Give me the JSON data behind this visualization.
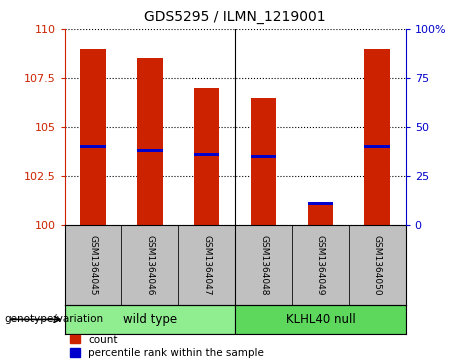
{
  "title": "GDS5295 / ILMN_1219001",
  "samples": [
    "GSM1364045",
    "GSM1364046",
    "GSM1364047",
    "GSM1364048",
    "GSM1364049",
    "GSM1364050"
  ],
  "group_labels": [
    "wild type",
    "KLHL40 null"
  ],
  "group_colors": [
    "#90EE90",
    "#5DD85D"
  ],
  "count_values": [
    109.0,
    108.5,
    107.0,
    106.5,
    101.2,
    109.0
  ],
  "percentile_values": [
    104.0,
    103.8,
    103.6,
    103.5,
    101.1,
    104.0
  ],
  "bar_bottom": 100,
  "bar_color": "#CC2200",
  "percentile_color": "#0000CC",
  "ylim": [
    100,
    110
  ],
  "yticks_left": [
    100,
    102.5,
    105,
    107.5,
    110
  ],
  "yticks_right": [
    0,
    25,
    50,
    75,
    100
  ],
  "bar_width": 0.45,
  "bg_color_sample": "#C0C0C0",
  "legend_count_label": "count",
  "legend_percentile_label": "percentile rank within the sample",
  "title_fontsize": 10,
  "tick_fontsize": 8,
  "sample_fontsize": 6.5,
  "group_fontsize": 8.5,
  "legend_fontsize": 7.5
}
